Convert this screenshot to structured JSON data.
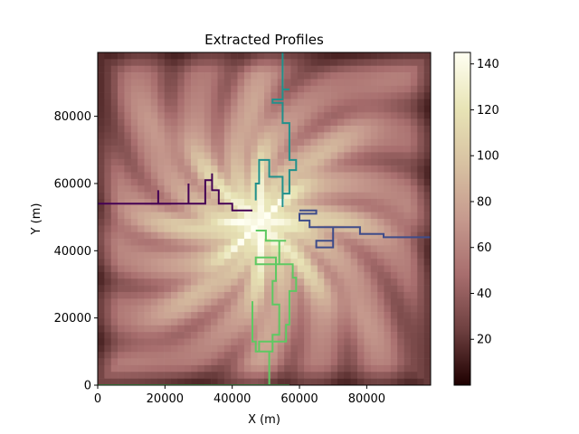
{
  "chart_data": {
    "type": "heatmap",
    "title": "Extracted Profiles",
    "xlabel": "X (m)",
    "ylabel": "Y (m)",
    "xlim": [
      0,
      99000
    ],
    "ylim": [
      0,
      99000
    ],
    "x_ticks": [
      0,
      20000,
      40000,
      60000,
      80000
    ],
    "y_ticks": [
      0,
      20000,
      40000,
      60000,
      80000
    ],
    "x_tick_labels": [
      "0",
      "20000",
      "40000",
      "60000",
      "80000"
    ],
    "y_tick_labels": [
      "0",
      "20000",
      "40000",
      "60000",
      "80000"
    ],
    "colorbar": {
      "range": [
        0,
        145
      ],
      "ticks": [
        20,
        40,
        60,
        80,
        100,
        120,
        140
      ],
      "tick_labels": [
        "20",
        "40",
        "60",
        "80",
        "100",
        "120",
        "140"
      ],
      "colormap": "pink"
    },
    "colormap_stops": [
      "#1e0000",
      "#6e4040",
      "#a86e6e",
      "#c69a8e",
      "#d8c2a2",
      "#e8e4b6",
      "#fffff2"
    ],
    "profiles": [
      {
        "color": "#440154",
        "points": [
          [
            0,
            54000
          ],
          [
            18000,
            54000
          ],
          [
            18000,
            58000
          ],
          [
            18000,
            54000
          ],
          [
            27000,
            54000
          ],
          [
            27000,
            60000
          ],
          [
            27000,
            54000
          ],
          [
            32000,
            54000
          ],
          [
            32000,
            61000
          ],
          [
            34000,
            61000
          ],
          [
            34000,
            63000
          ],
          [
            34000,
            58000
          ],
          [
            36000,
            58000
          ],
          [
            36000,
            54000
          ],
          [
            40000,
            54000
          ],
          [
            40000,
            52000
          ],
          [
            46000,
            52000
          ]
        ]
      },
      {
        "color": "#3e4c8a",
        "points": [
          [
            99000,
            44000
          ],
          [
            85000,
            44000
          ],
          [
            85000,
            45000
          ],
          [
            78000,
            45000
          ],
          [
            78000,
            47000
          ],
          [
            70000,
            47000
          ],
          [
            70000,
            43000
          ],
          [
            65000,
            43000
          ],
          [
            65000,
            41000
          ],
          [
            70000,
            41000
          ],
          [
            70000,
            47000
          ],
          [
            63000,
            47000
          ],
          [
            63000,
            49000
          ],
          [
            60000,
            49000
          ],
          [
            60000,
            51000
          ],
          [
            65000,
            51000
          ],
          [
            65000,
            52000
          ],
          [
            60000,
            52000
          ]
        ]
      },
      {
        "color": "#21918c",
        "points": [
          [
            55000,
            99000
          ],
          [
            55000,
            88000
          ],
          [
            57000,
            88000
          ],
          [
            55000,
            88000
          ],
          [
            55000,
            85000
          ],
          [
            52000,
            85000
          ],
          [
            52000,
            84000
          ],
          [
            55000,
            84000
          ],
          [
            55000,
            78000
          ],
          [
            57000,
            78000
          ],
          [
            57000,
            67000
          ],
          [
            59000,
            67000
          ],
          [
            59000,
            64000
          ],
          [
            57000,
            64000
          ],
          [
            57000,
            57000
          ],
          [
            55000,
            57000
          ],
          [
            55000,
            53000
          ],
          [
            55000,
            62000
          ],
          [
            51000,
            62000
          ],
          [
            51000,
            67000
          ],
          [
            48000,
            67000
          ],
          [
            48000,
            60000
          ],
          [
            47000,
            60000
          ],
          [
            47000,
            55000
          ]
        ]
      },
      {
        "color": "#5ec962",
        "points": [
          [
            0,
            0
          ],
          [
            57000,
            0
          ],
          [
            51000,
            0
          ],
          [
            51000,
            10000
          ],
          [
            48000,
            10000
          ],
          [
            48000,
            13000
          ],
          [
            56000,
            13000
          ],
          [
            56000,
            18000
          ],
          [
            57000,
            18000
          ],
          [
            57000,
            28000
          ],
          [
            59000,
            28000
          ],
          [
            59000,
            32000
          ],
          [
            58000,
            32000
          ],
          [
            58000,
            36000
          ],
          [
            54000,
            36000
          ],
          [
            54000,
            43000
          ],
          [
            50000,
            43000
          ],
          [
            50000,
            46000
          ],
          [
            47000,
            46000
          ],
          [
            50000,
            46000
          ],
          [
            50000,
            43000
          ],
          [
            56000,
            43000
          ],
          [
            54000,
            43000
          ],
          [
            54000,
            36000
          ],
          [
            47000,
            36000
          ],
          [
            47000,
            38000
          ],
          [
            53000,
            38000
          ],
          [
            53000,
            31000
          ],
          [
            52000,
            31000
          ],
          [
            52000,
            24000
          ],
          [
            54000,
            24000
          ],
          [
            54000,
            15000
          ],
          [
            52000,
            15000
          ],
          [
            52000,
            10000
          ],
          [
            47000,
            10000
          ],
          [
            47000,
            13000
          ],
          [
            46000,
            13000
          ],
          [
            46000,
            25000
          ]
        ]
      }
    ]
  }
}
